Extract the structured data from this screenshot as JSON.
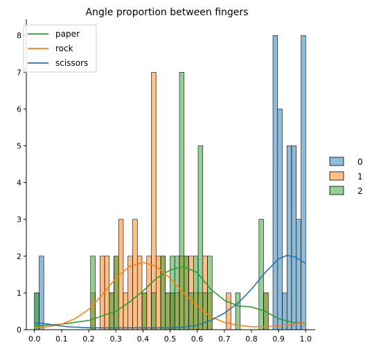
{
  "chart_data": {
    "type": "histogram",
    "title": "Angle proportion between fingers",
    "xlabel": "",
    "ylabel": "",
    "xlim": [
      -0.03,
      1.035
    ],
    "ylim": [
      0,
      8.4
    ],
    "xticks": [
      0.0,
      0.1,
      0.2,
      0.3,
      0.4,
      0.5,
      0.6,
      0.7,
      0.8,
      0.9,
      1.0
    ],
    "xtick_labels": [
      "0.0",
      "0.1",
      "0.2",
      "0.3",
      "0.4",
      "0.5",
      "0.6",
      "0.7",
      "0.8",
      "0.9",
      "1.0"
    ],
    "yticks": [
      0,
      1,
      2,
      3,
      4,
      5,
      6,
      7,
      8
    ],
    "ytick_labels": [
      "0",
      "1",
      "2",
      "3",
      "4",
      "5",
      "6",
      "7",
      "8"
    ],
    "bin_width": 0.0172,
    "grid": false,
    "hist_series": [
      {
        "name": "0",
        "color": "#1f77b4",
        "bins": [
          {
            "x": 0.0,
            "count": 1
          },
          {
            "x": 0.0172,
            "count": 2
          },
          {
            "x": 0.5,
            "count": 1
          },
          {
            "x": 0.8793,
            "count": 8
          },
          {
            "x": 0.8965,
            "count": 6
          },
          {
            "x": 0.9137,
            "count": 1
          },
          {
            "x": 0.9309,
            "count": 5
          },
          {
            "x": 0.9481,
            "count": 5
          },
          {
            "x": 0.9653,
            "count": 3
          },
          {
            "x": 0.9828,
            "count": 8
          }
        ]
      },
      {
        "name": "1",
        "color": "#ff7f0e",
        "bins": [
          {
            "x": 0.2069,
            "count": 1
          },
          {
            "x": 0.2414,
            "count": 2
          },
          {
            "x": 0.2586,
            "count": 2
          },
          {
            "x": 0.2759,
            "count": 1
          },
          {
            "x": 0.2931,
            "count": 2
          },
          {
            "x": 0.3103,
            "count": 3
          },
          {
            "x": 0.3276,
            "count": 1
          },
          {
            "x": 0.3448,
            "count": 2
          },
          {
            "x": 0.3621,
            "count": 3
          },
          {
            "x": 0.3793,
            "count": 2
          },
          {
            "x": 0.3966,
            "count": 1
          },
          {
            "x": 0.4138,
            "count": 2
          },
          {
            "x": 0.431,
            "count": 7
          },
          {
            "x": 0.4483,
            "count": 2
          },
          {
            "x": 0.4655,
            "count": 2
          },
          {
            "x": 0.4828,
            "count": 1
          },
          {
            "x": 0.5,
            "count": 1
          },
          {
            "x": 0.5172,
            "count": 1
          },
          {
            "x": 0.5345,
            "count": 2
          },
          {
            "x": 0.5517,
            "count": 2
          },
          {
            "x": 0.569,
            "count": 2
          },
          {
            "x": 0.5862,
            "count": 1
          },
          {
            "x": 0.6034,
            "count": 1
          },
          {
            "x": 0.6207,
            "count": 2
          },
          {
            "x": 0.6379,
            "count": 1
          },
          {
            "x": 0.7069,
            "count": 1
          },
          {
            "x": 0.8448,
            "count": 1
          }
        ]
      },
      {
        "name": "2",
        "color": "#2ca02c",
        "bins": [
          {
            "x": 0.0,
            "count": 1
          },
          {
            "x": 0.2069,
            "count": 2
          },
          {
            "x": 0.2759,
            "count": 1
          },
          {
            "x": 0.2931,
            "count": 2
          },
          {
            "x": 0.3966,
            "count": 1
          },
          {
            "x": 0.431,
            "count": 1
          },
          {
            "x": 0.4655,
            "count": 2
          },
          {
            "x": 0.4828,
            "count": 1
          },
          {
            "x": 0.5,
            "count": 2
          },
          {
            "x": 0.5172,
            "count": 2
          },
          {
            "x": 0.5345,
            "count": 7
          },
          {
            "x": 0.5517,
            "count": 2
          },
          {
            "x": 0.569,
            "count": 1
          },
          {
            "x": 0.5862,
            "count": 2
          },
          {
            "x": 0.6034,
            "count": 5
          },
          {
            "x": 0.6207,
            "count": 1
          },
          {
            "x": 0.6379,
            "count": 2
          },
          {
            "x": 0.7414,
            "count": 1
          },
          {
            "x": 0.8276,
            "count": 3
          },
          {
            "x": 0.8448,
            "count": 1
          }
        ]
      }
    ],
    "kde_series": [
      {
        "name": "paper",
        "color": "#2ca02c",
        "points": [
          [
            0.0,
            0.1
          ],
          [
            0.1,
            0.15
          ],
          [
            0.2,
            0.25
          ],
          [
            0.3,
            0.5
          ],
          [
            0.35,
            0.75
          ],
          [
            0.4,
            1.05
          ],
          [
            0.45,
            1.4
          ],
          [
            0.5,
            1.62
          ],
          [
            0.55,
            1.72
          ],
          [
            0.6,
            1.55
          ],
          [
            0.65,
            1.1
          ],
          [
            0.7,
            0.8
          ],
          [
            0.75,
            0.65
          ],
          [
            0.8,
            0.62
          ],
          [
            0.85,
            0.5
          ],
          [
            0.9,
            0.3
          ],
          [
            0.95,
            0.2
          ],
          [
            1.0,
            0.18
          ]
        ]
      },
      {
        "name": "rock",
        "color": "#ff7f0e",
        "points": [
          [
            0.0,
            0.05
          ],
          [
            0.05,
            0.08
          ],
          [
            0.1,
            0.15
          ],
          [
            0.15,
            0.3
          ],
          [
            0.2,
            0.55
          ],
          [
            0.25,
            0.95
          ],
          [
            0.3,
            1.4
          ],
          [
            0.35,
            1.72
          ],
          [
            0.4,
            1.83
          ],
          [
            0.45,
            1.72
          ],
          [
            0.5,
            1.4
          ],
          [
            0.55,
            1.0
          ],
          [
            0.6,
            0.65
          ],
          [
            0.65,
            0.35
          ],
          [
            0.7,
            0.2
          ],
          [
            0.75,
            0.12
          ],
          [
            0.8,
            0.08
          ],
          [
            0.85,
            0.08
          ],
          [
            0.9,
            0.1
          ],
          [
            0.95,
            0.15
          ],
          [
            1.0,
            0.2
          ]
        ]
      },
      {
        "name": "scissors",
        "color": "#1f77b4",
        "points": [
          [
            0.0,
            0.18
          ],
          [
            0.03,
            0.17
          ],
          [
            0.07,
            0.13
          ],
          [
            0.12,
            0.08
          ],
          [
            0.2,
            0.05
          ],
          [
            0.3,
            0.05
          ],
          [
            0.4,
            0.05
          ],
          [
            0.5,
            0.05
          ],
          [
            0.55,
            0.07
          ],
          [
            0.6,
            0.12
          ],
          [
            0.65,
            0.25
          ],
          [
            0.7,
            0.45
          ],
          [
            0.75,
            0.72
          ],
          [
            0.8,
            1.1
          ],
          [
            0.85,
            1.55
          ],
          [
            0.9,
            1.92
          ],
          [
            0.93,
            2.02
          ],
          [
            0.96,
            1.98
          ],
          [
            1.0,
            1.8
          ]
        ]
      }
    ],
    "legend_kde": {
      "placement": "top-left",
      "entries": [
        {
          "label": "paper",
          "color": "#2ca02c"
        },
        {
          "label": "rock",
          "color": "#ff7f0e"
        },
        {
          "label": "scissors",
          "color": "#1f77b4"
        }
      ]
    },
    "legend_hist": {
      "placement": "right",
      "entries": [
        {
          "label": "0",
          "color": "#1f77b4"
        },
        {
          "label": "1",
          "color": "#ff7f0e"
        },
        {
          "label": "2",
          "color": "#2ca02c"
        }
      ]
    }
  }
}
